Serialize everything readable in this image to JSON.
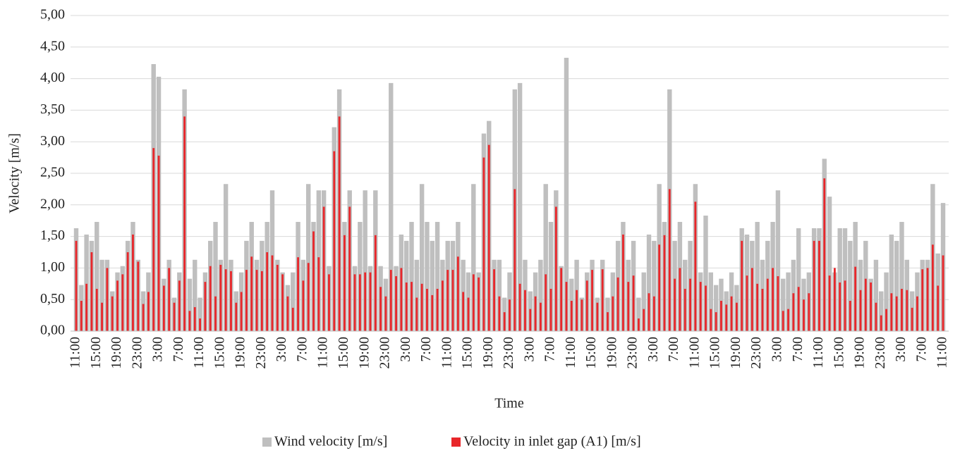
{
  "chart_data": {
    "type": "bar",
    "x_label": "Time",
    "y_label": "Velocity [m/s]",
    "categories": [
      "11:00",
      null,
      null,
      null,
      "15:00",
      null,
      null,
      null,
      "19:00",
      null,
      null,
      null,
      "23:00",
      null,
      null,
      null,
      "3:00",
      null,
      null,
      null,
      "7:00",
      null,
      null,
      null,
      "11:00",
      null,
      null,
      null,
      "15:00",
      null,
      null,
      null,
      "19:00",
      null,
      null,
      null,
      "23:00",
      null,
      null,
      null,
      "3:00",
      null,
      null,
      null,
      "7:00",
      null,
      null,
      null,
      "11:00",
      null,
      null,
      null,
      "15:00",
      null,
      null,
      null,
      "19:00",
      null,
      null,
      null,
      "23:00",
      null,
      null,
      null,
      "3:00",
      null,
      null,
      null,
      "7:00",
      null,
      null,
      null,
      "11:00",
      null,
      null,
      null,
      "15:00",
      null,
      null,
      null,
      "19:00",
      null,
      null,
      null,
      "23:00",
      null,
      null,
      null,
      "3:00",
      null,
      null,
      null,
      "7:00",
      null,
      null,
      null,
      "11:00",
      null,
      null,
      null,
      "15:00",
      null,
      null,
      null,
      "19:00",
      null,
      null,
      null,
      "23:00",
      null,
      null,
      null,
      "3:00",
      null,
      null,
      null,
      "7:00",
      null,
      null,
      null,
      "11:00",
      null,
      null,
      null,
      "15:00",
      null,
      null,
      null,
      "19:00",
      null,
      null,
      null,
      "23:00",
      null,
      null,
      null,
      "3:00",
      null,
      null,
      null,
      "7:00",
      null,
      null,
      null,
      "11:00",
      null,
      null,
      null,
      "15:00",
      null,
      null,
      null,
      "19:00",
      null,
      null,
      null,
      "23:00",
      null,
      null,
      null,
      "3:00",
      null,
      null,
      null,
      "7:00",
      null,
      null,
      null,
      "11:00"
    ],
    "series": [
      {
        "name": "Wind velocity [m/s]",
        "color": "#bfbfbf",
        "values": [
          1.63,
          0.73,
          1.53,
          1.43,
          1.73,
          1.13,
          1.13,
          0.63,
          0.93,
          1.03,
          1.43,
          1.73,
          1.13,
          0.63,
          0.93,
          4.23,
          4.03,
          0.83,
          1.13,
          0.53,
          0.93,
          3.83,
          0.83,
          1.13,
          0.53,
          0.93,
          1.43,
          1.73,
          1.13,
          2.33,
          1.13,
          0.63,
          0.93,
          1.43,
          1.73,
          1.13,
          1.43,
          1.73,
          2.23,
          1.13,
          0.93,
          0.73,
          0.93,
          1.73,
          1.13,
          2.33,
          1.73,
          2.23,
          2.23,
          1.03,
          3.23,
          3.83,
          1.73,
          2.23,
          1.03,
          1.73,
          2.23,
          1.03,
          2.23,
          1.03,
          0.83,
          3.93,
          1.03,
          1.53,
          1.43,
          1.73,
          1.13,
          2.33,
          1.73,
          1.43,
          1.73,
          1.13,
          1.43,
          1.43,
          1.73,
          1.13,
          0.93,
          2.33,
          0.93,
          3.13,
          3.33,
          1.13,
          1.13,
          0.53,
          0.93,
          3.83,
          3.93,
          1.13,
          0.63,
          0.93,
          1.13,
          2.33,
          1.73,
          2.23,
          1.03,
          4.33,
          0.83,
          1.13,
          0.53,
          0.93,
          1.13,
          0.53,
          1.13,
          0.53,
          0.93,
          1.43,
          1.73,
          1.13,
          1.43,
          0.53,
          0.93,
          1.53,
          1.43,
          2.33,
          1.73,
          3.83,
          1.43,
          1.73,
          1.13,
          1.43,
          2.33,
          0.93,
          1.83,
          0.93,
          0.73,
          0.83,
          0.63,
          0.93,
          0.73,
          1.63,
          1.53,
          1.43,
          1.73,
          1.13,
          1.43,
          1.73,
          2.23,
          0.83,
          0.93,
          1.13,
          1.63,
          0.83,
          0.93,
          1.63,
          1.63,
          2.73,
          2.13,
          0.93,
          1.63,
          1.63,
          1.43,
          1.73,
          1.13,
          1.43,
          0.83,
          1.13,
          0.63,
          0.93,
          1.53,
          1.43,
          1.73,
          1.13,
          0.63,
          0.93,
          1.13,
          1.13,
          2.33,
          1.23,
          2.03
        ]
      },
      {
        "name": "Velocity in inlet gap (A1) [m/s]",
        "color": "#e8262a",
        "values": [
          1.43,
          0.48,
          0.75,
          1.25,
          0.67,
          0.45,
          1.0,
          0.55,
          0.8,
          0.9,
          1.25,
          1.53,
          1.1,
          0.43,
          0.62,
          2.9,
          2.78,
          0.72,
          1.0,
          0.45,
          0.8,
          3.4,
          0.32,
          0.38,
          0.2,
          0.78,
          1.03,
          0.55,
          1.05,
          0.98,
          0.95,
          0.45,
          0.62,
          0.97,
          1.18,
          0.97,
          0.95,
          1.25,
          1.2,
          1.05,
          0.9,
          0.55,
          0.37,
          1.17,
          0.8,
          1.08,
          1.58,
          1.17,
          1.97,
          0.9,
          2.85,
          3.4,
          1.52,
          1.97,
          0.9,
          0.9,
          0.93,
          0.93,
          1.52,
          0.7,
          0.55,
          0.97,
          0.87,
          1.0,
          0.77,
          0.78,
          0.53,
          0.75,
          0.67,
          0.57,
          0.67,
          0.8,
          0.97,
          0.97,
          1.18,
          0.62,
          0.53,
          0.9,
          0.85,
          2.75,
          2.95,
          0.98,
          0.55,
          0.3,
          0.5,
          2.25,
          0.75,
          0.65,
          0.35,
          0.55,
          0.45,
          0.9,
          0.67,
          1.97,
          1.0,
          0.78,
          0.48,
          0.65,
          0.5,
          0.8,
          0.97,
          0.45,
          0.98,
          0.3,
          0.55,
          0.85,
          1.53,
          0.78,
          0.88,
          0.2,
          0.35,
          0.6,
          0.55,
          1.37,
          1.52,
          2.25,
          0.83,
          1.0,
          0.67,
          0.83,
          2.05,
          0.78,
          0.72,
          0.35,
          0.3,
          0.48,
          0.42,
          0.55,
          0.45,
          1.43,
          0.88,
          1.0,
          0.75,
          0.67,
          0.83,
          1.0,
          0.87,
          0.32,
          0.35,
          0.6,
          0.7,
          0.5,
          0.6,
          1.43,
          1.43,
          2.42,
          0.88,
          1.0,
          0.77,
          0.8,
          0.48,
          1.02,
          0.65,
          0.83,
          0.77,
          0.45,
          0.25,
          0.35,
          0.6,
          0.55,
          0.67,
          0.65,
          0.37,
          0.55,
          0.98,
          1.0,
          1.37,
          0.72,
          1.2
        ]
      }
    ],
    "ylim": [
      0,
      5
    ],
    "yticks": [
      {
        "value": 0,
        "label": "0,00"
      },
      {
        "value": 0.5,
        "label": "0,50"
      },
      {
        "value": 1,
        "label": "1,00"
      },
      {
        "value": 1.5,
        "label": "1,50"
      },
      {
        "value": 2,
        "label": "2,00"
      },
      {
        "value": 2.5,
        "label": "2,50"
      },
      {
        "value": 3,
        "label": "3,00"
      },
      {
        "value": 3.5,
        "label": "3,50"
      },
      {
        "value": 4,
        "label": "4,00"
      },
      {
        "value": 4.5,
        "label": "4,50"
      },
      {
        "value": 5,
        "label": "5,00"
      }
    ],
    "grid": true,
    "legend": "bottom"
  }
}
